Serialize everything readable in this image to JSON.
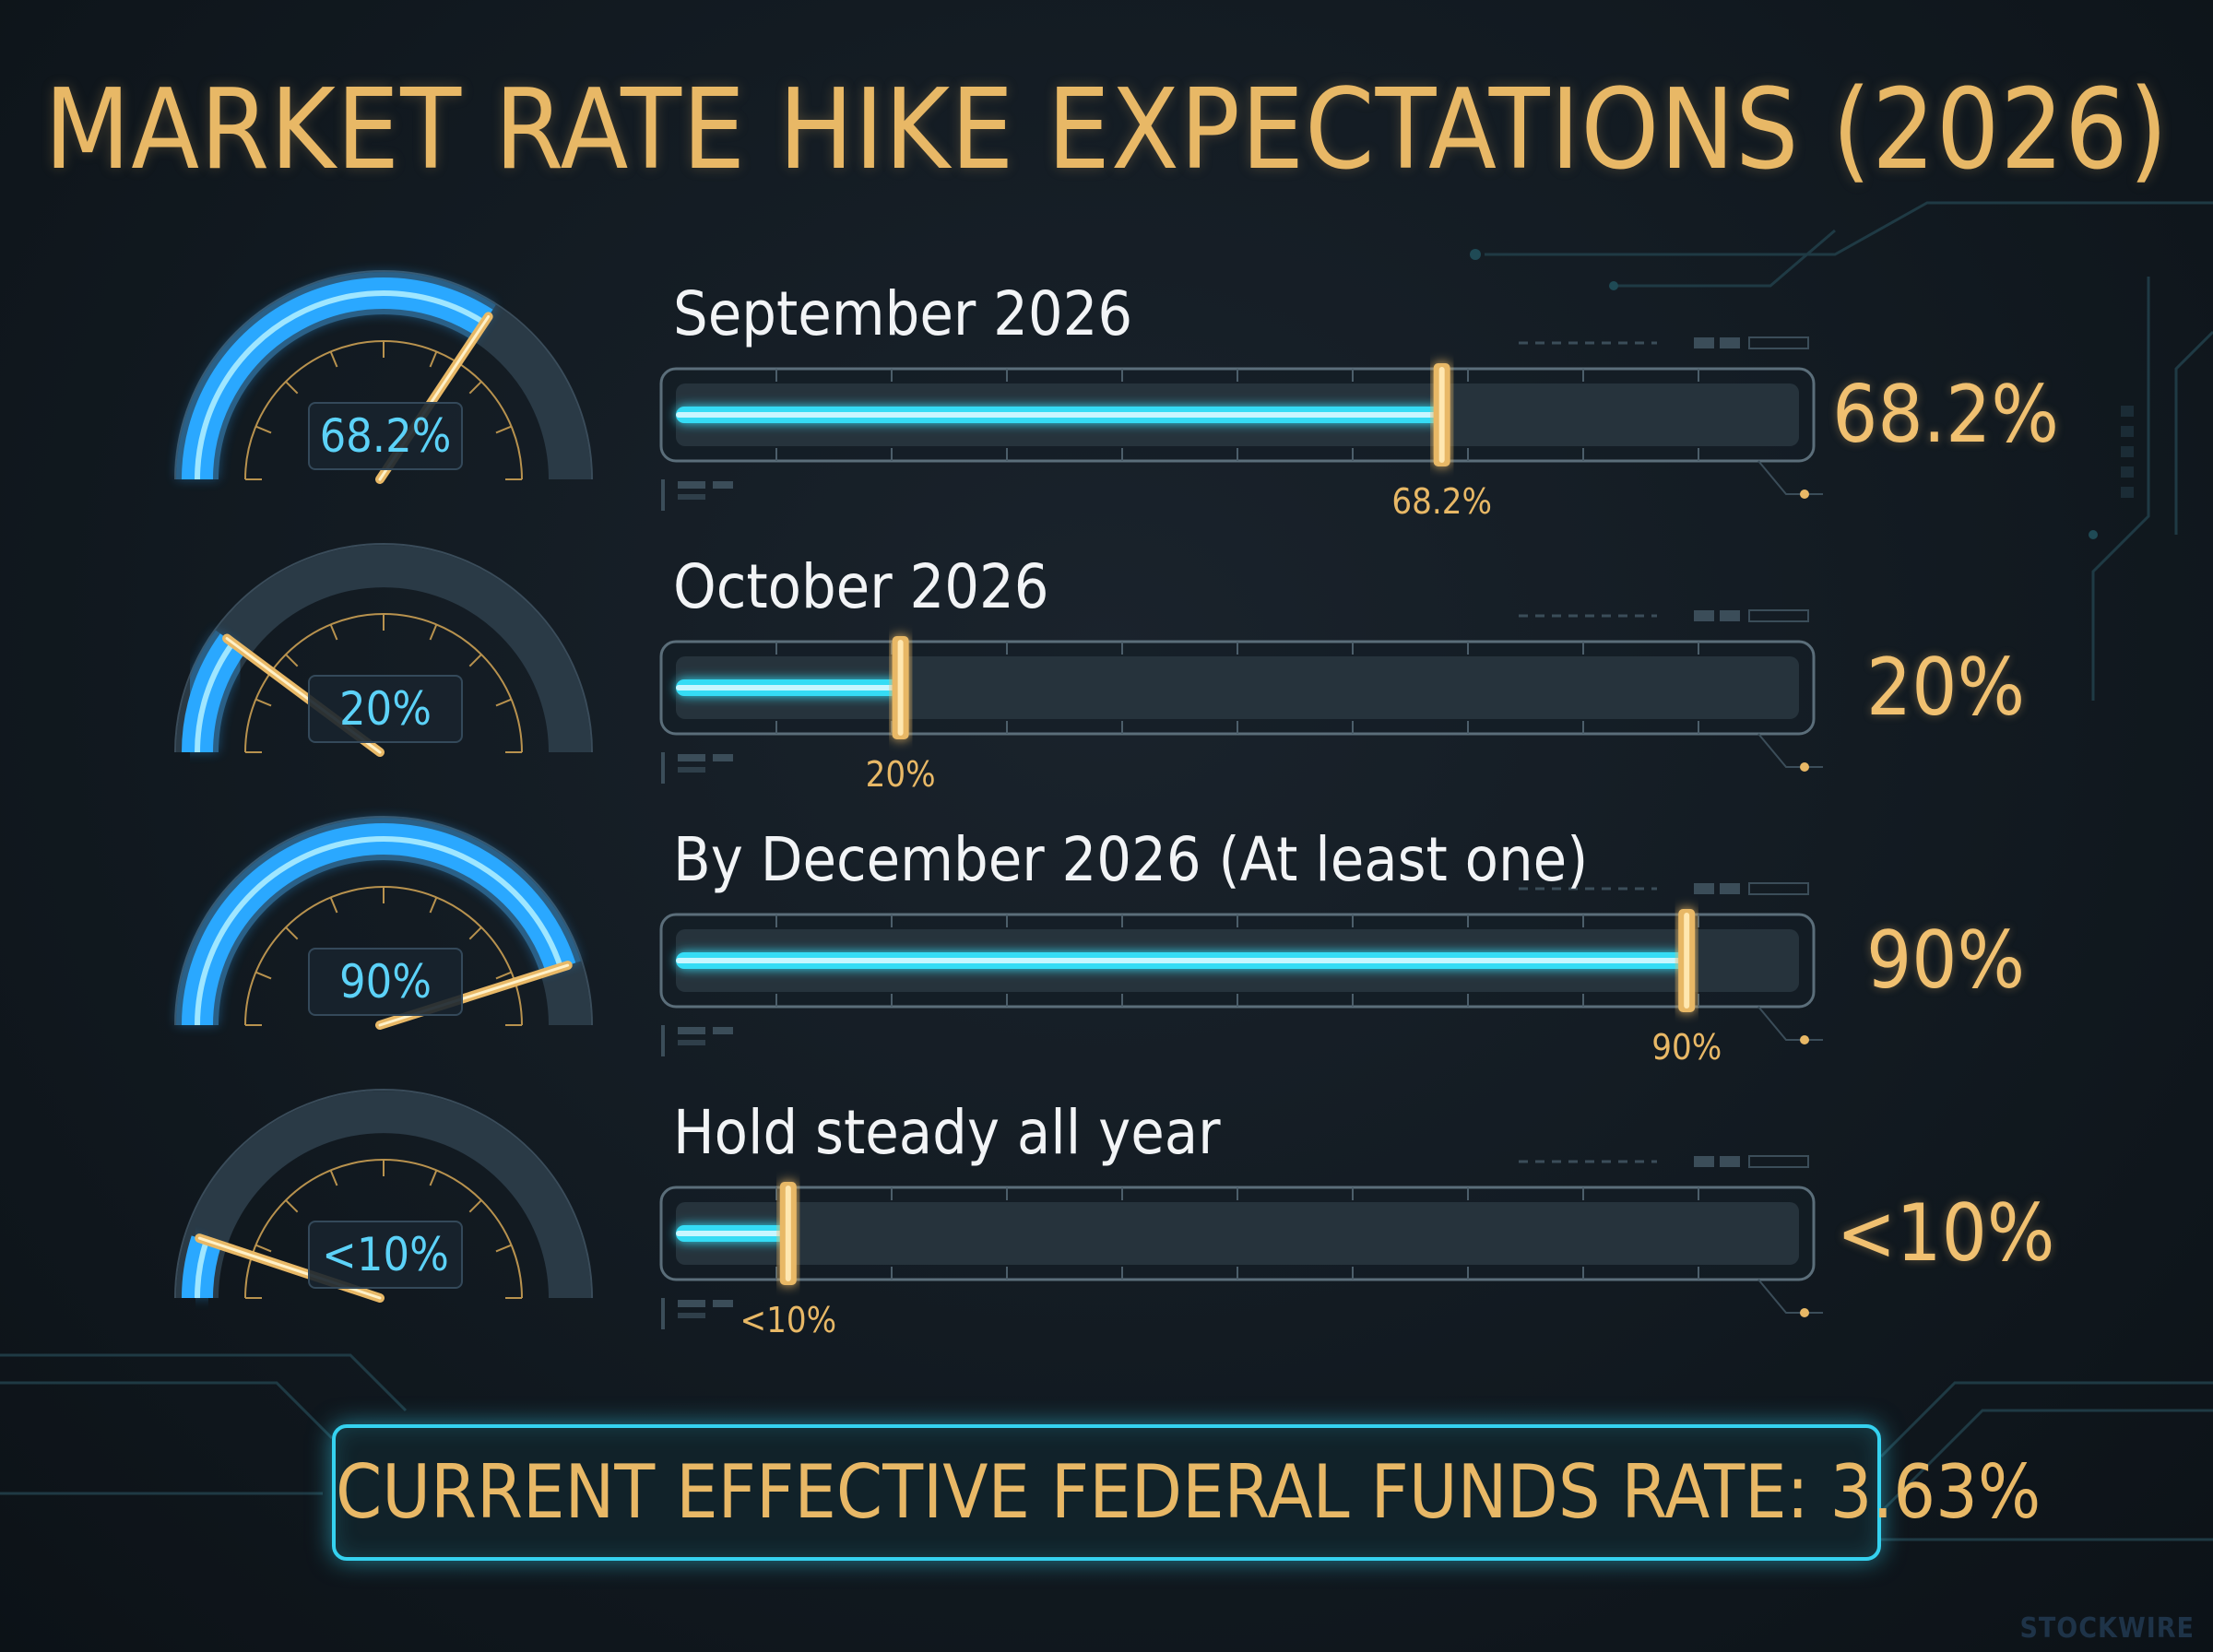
{
  "chart_data": {
    "type": "bar",
    "title": "MARKET RATE HIKE EXPECTATIONS (2026)",
    "categories": [
      "September 2026",
      "October 2026",
      "By December 2026 (At least one)",
      "Hold steady all year"
    ],
    "values": [
      68.2,
      20,
      90,
      10
    ],
    "value_labels": [
      "68.2%",
      "20%",
      "90%",
      "<10%"
    ],
    "unit": "%",
    "xlim": [
      0,
      100
    ],
    "orientation": "horizontal",
    "grid": false,
    "legend": "none",
    "footer": "CURRENT EFFECTIVE FEDERAL FUNDS RATE: 3.63%"
  },
  "watermark": "STOCKWIRE",
  "colors": {
    "accent_gold": "#e8b866",
    "bar_cyan": "#35dcf5",
    "gauge_blue": "#2aa8ff",
    "background": "#121a21"
  }
}
